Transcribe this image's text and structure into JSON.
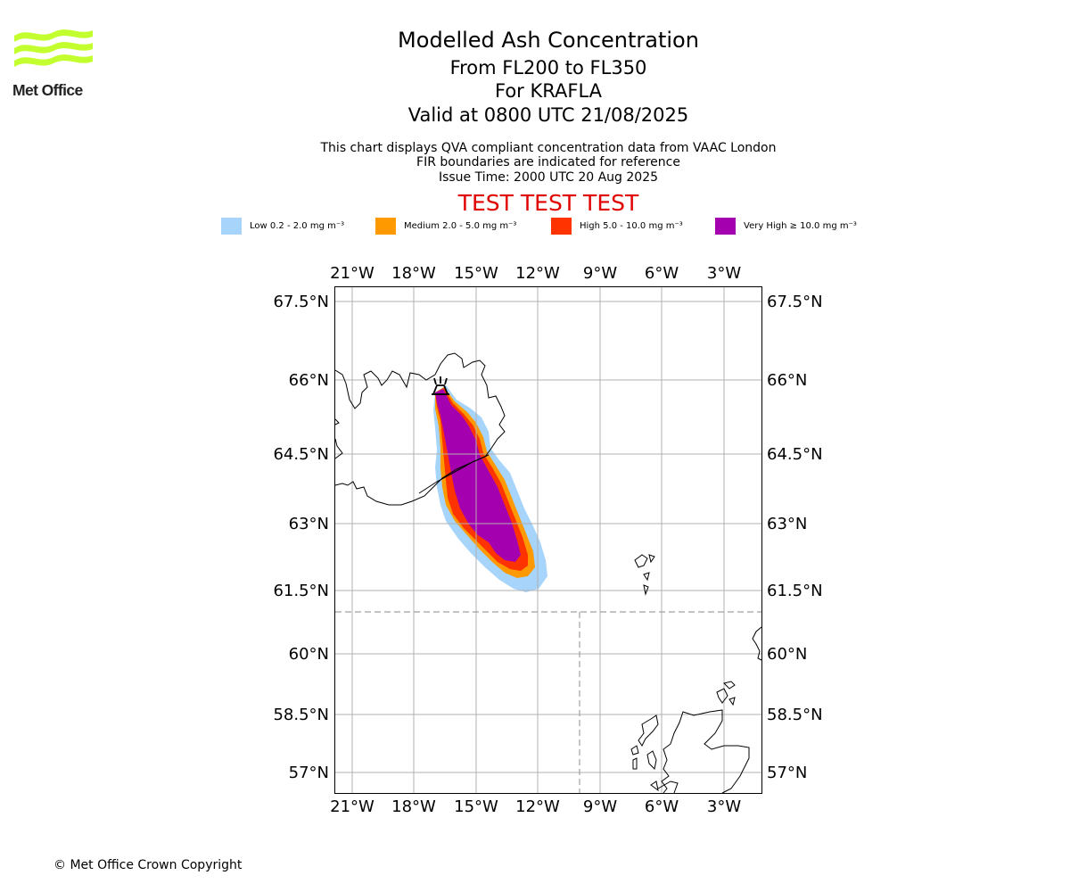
{
  "logo": {
    "text": "Met Office"
  },
  "header": {
    "title": "Modelled Ash Concentration",
    "levels": "From FL200 to FL350",
    "volcano": "For KRAFLA",
    "valid": "Valid at 0800 UTC 21/08/2025",
    "note1": "This chart displays QVA compliant concentration data from VAAC London",
    "note2": "FIR boundaries are indicated for reference",
    "issue": "Issue Time: 2000 UTC 20 Aug 2025",
    "warning": "TEST TEST TEST"
  },
  "legend": [
    {
      "label": "Low 0.2 - 2.0 mg m⁻³",
      "color": "#a6d4fa"
    },
    {
      "label": "Medium 2.0 - 5.0 mg m⁻³",
      "color": "#ff9900"
    },
    {
      "label": "High 5.0 - 10.0 mg m⁻³",
      "color": "#ff3300"
    },
    {
      "label": "Very High  ≥  10.0 mg m⁻³",
      "color": "#a500b0"
    }
  ],
  "map": {
    "lon_labels": [
      "21°W",
      "18°W",
      "15°W",
      "12°W",
      "9°W",
      "6°W",
      "3°W"
    ],
    "lat_labels": [
      "67.5°N",
      "66°N",
      "64.5°N",
      "63°N",
      "61.5°N",
      "60°N",
      "58.5°N",
      "57°N"
    ],
    "volcano_icon": "volcano-icon"
  },
  "footer": {
    "copyright": "© Met Office Crown Copyright"
  }
}
